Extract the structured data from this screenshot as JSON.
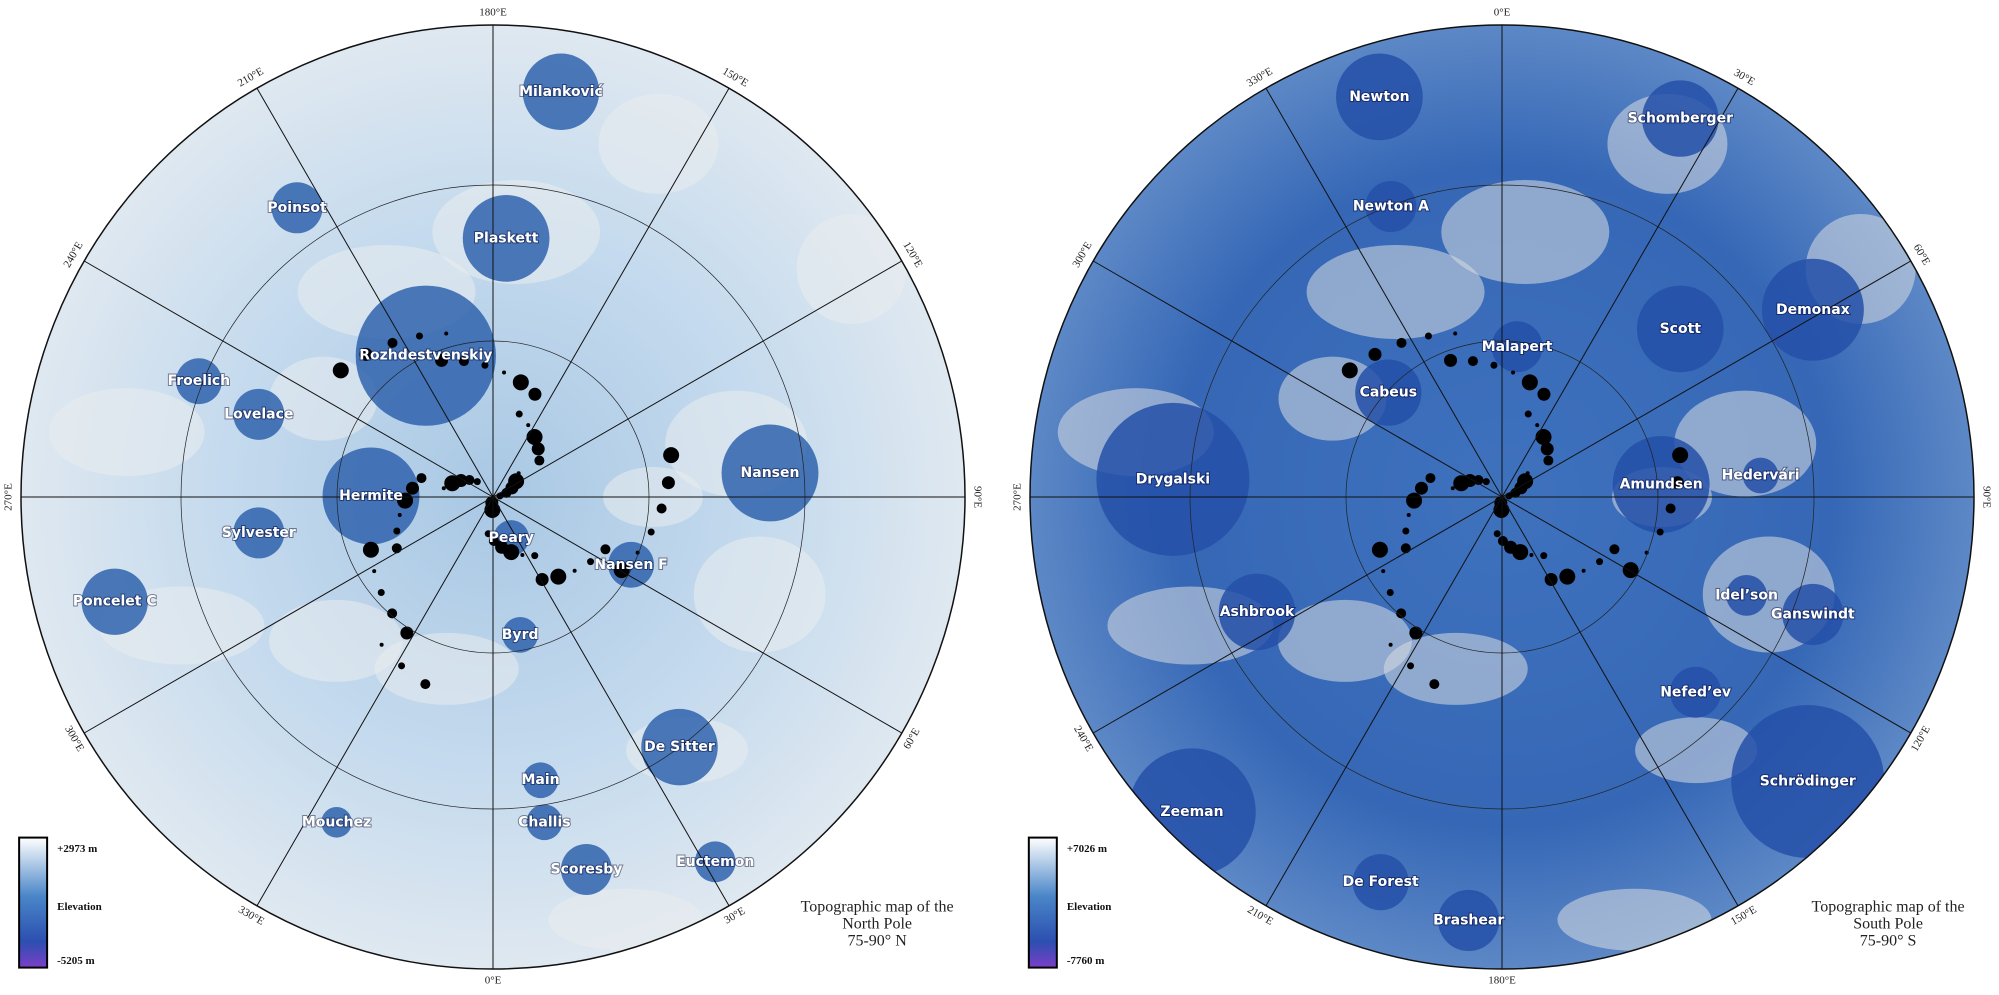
{
  "maps": [
    {
      "meridian_labels": [
        "0°E",
        "30°E",
        "60°E",
        "90°E",
        "120°E",
        "150°E",
        "180°E",
        "210°E",
        "240°E",
        "270°E",
        "300°E",
        "330°E"
      ],
      "craters": [
        "Milanković",
        "Poinsot",
        "Plaskett",
        "Rozhdestvenskiy",
        "Froelich",
        "Lovelace",
        "Nansen",
        "Hermite",
        "Sylvester",
        "Peary",
        "Nansen F",
        "Poncelet C",
        "Byrd",
        "De Sitter",
        "Main",
        "Mouchez",
        "Challis",
        "Scoresby",
        "Euctemon"
      ],
      "legend": {
        "max": "+2973 m",
        "title": "Elevation",
        "min": "-5205 m"
      },
      "caption": [
        "Topographic map of the",
        "North Pole",
        "75-90° N"
      ]
    },
    {
      "meridian_labels": [
        "0°E",
        "30°E",
        "60°E",
        "90°E",
        "120°E",
        "150°E",
        "180°E",
        "210°E",
        "240°E",
        "270°E",
        "300°E",
        "330°E"
      ],
      "craters": [
        "Newton",
        "Schomberger",
        "Newton A",
        "Demonax",
        "Scott",
        "Malapert",
        "Cabeus",
        "Drygalski",
        "Amundsen",
        "Hedervári",
        "Ashbrook",
        "Idel’son",
        "Ganswindt",
        "Nefed’ev",
        "Schrödinger",
        "Zeeman",
        "De Forest",
        "Brashear"
      ],
      "legend": {
        "max": "+7026 m",
        "title": "Elevation",
        "min": "-7760 m"
      },
      "caption": [
        "Topographic map of the",
        "South Pole",
        "75-90° S"
      ]
    }
  ]
}
